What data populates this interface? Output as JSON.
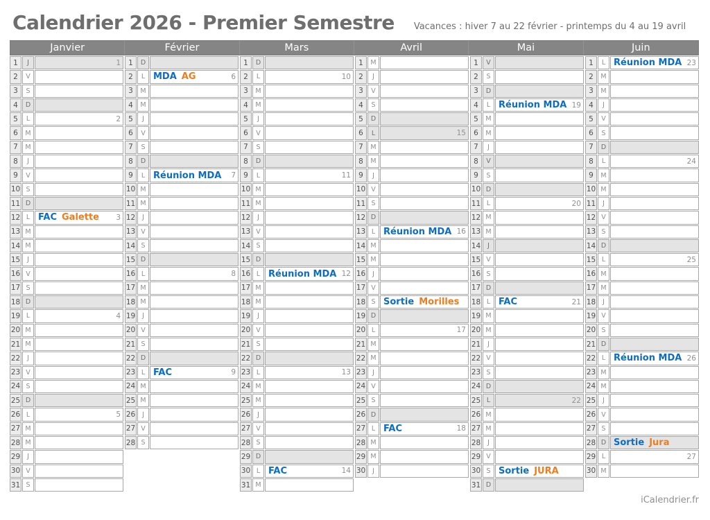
{
  "page": {
    "title": "Calendrier 2026 - Premier Semestre",
    "subtitle": "Vacances : hiver 7 au 22 février - printemps  du 4 au 19 avril",
    "footer": "iCalendrier.fr"
  },
  "colors": {
    "accent_blue": "#0e6dc2",
    "accent_orange": "#ee7d1e",
    "header_gray": "#858585",
    "shaded_row": "#e4e4e4"
  },
  "months": [
    {
      "name": "Janvier",
      "days": [
        {
          "n": 1,
          "l": "J",
          "w": "1",
          "s": 1
        },
        {
          "n": 2,
          "l": "V"
        },
        {
          "n": 3,
          "l": "S"
        },
        {
          "n": 4,
          "l": "D",
          "s": 1
        },
        {
          "n": 5,
          "l": "L",
          "w": "2"
        },
        {
          "n": 6,
          "l": "M"
        },
        {
          "n": 7,
          "l": "M"
        },
        {
          "n": 8,
          "l": "J"
        },
        {
          "n": 9,
          "l": "V"
        },
        {
          "n": 10,
          "l": "S"
        },
        {
          "n": 11,
          "l": "D",
          "s": 1
        },
        {
          "n": 12,
          "l": "L",
          "w": "3",
          "e": [
            [
              "FAC",
              "blue"
            ],
            [
              "Galette",
              "orange"
            ]
          ]
        },
        {
          "n": 13,
          "l": "M"
        },
        {
          "n": 14,
          "l": "M"
        },
        {
          "n": 15,
          "l": "J"
        },
        {
          "n": 16,
          "l": "V"
        },
        {
          "n": 17,
          "l": "S"
        },
        {
          "n": 18,
          "l": "D",
          "s": 1
        },
        {
          "n": 19,
          "l": "L",
          "w": "4"
        },
        {
          "n": 20,
          "l": "M"
        },
        {
          "n": 21,
          "l": "M"
        },
        {
          "n": 22,
          "l": "J"
        },
        {
          "n": 23,
          "l": "V"
        },
        {
          "n": 24,
          "l": "S"
        },
        {
          "n": 25,
          "l": "D",
          "s": 1
        },
        {
          "n": 26,
          "l": "L",
          "w": "5"
        },
        {
          "n": 27,
          "l": "M"
        },
        {
          "n": 28,
          "l": "M"
        },
        {
          "n": 29,
          "l": "J"
        },
        {
          "n": 30,
          "l": "V"
        },
        {
          "n": 31,
          "l": "S"
        }
      ]
    },
    {
      "name": "Février",
      "days": [
        {
          "n": 1,
          "l": "D",
          "s": 1
        },
        {
          "n": 2,
          "l": "L",
          "w": "6",
          "e": [
            [
              "MDA",
              "blue"
            ],
            [
              "AG",
              "orange"
            ]
          ]
        },
        {
          "n": 3,
          "l": "M"
        },
        {
          "n": 4,
          "l": "M"
        },
        {
          "n": 5,
          "l": "J"
        },
        {
          "n": 6,
          "l": "V"
        },
        {
          "n": 7,
          "l": "S"
        },
        {
          "n": 8,
          "l": "D",
          "s": 1
        },
        {
          "n": 9,
          "l": "L",
          "w": "7",
          "e": [
            [
              "Réunion MDA",
              "blue"
            ]
          ]
        },
        {
          "n": 10,
          "l": "M"
        },
        {
          "n": 11,
          "l": "M"
        },
        {
          "n": 12,
          "l": "J"
        },
        {
          "n": 13,
          "l": "V"
        },
        {
          "n": 14,
          "l": "S"
        },
        {
          "n": 15,
          "l": "D",
          "s": 1
        },
        {
          "n": 16,
          "l": "L",
          "w": "8"
        },
        {
          "n": 17,
          "l": "M"
        },
        {
          "n": 18,
          "l": "M"
        },
        {
          "n": 19,
          "l": "J"
        },
        {
          "n": 20,
          "l": "V"
        },
        {
          "n": 21,
          "l": "S"
        },
        {
          "n": 22,
          "l": "D",
          "s": 1
        },
        {
          "n": 23,
          "l": "L",
          "w": "9",
          "e": [
            [
              "FAC",
              "blue"
            ]
          ]
        },
        {
          "n": 24,
          "l": "M"
        },
        {
          "n": 25,
          "l": "M"
        },
        {
          "n": 26,
          "l": "J"
        },
        {
          "n": 27,
          "l": "V"
        },
        {
          "n": 28,
          "l": "S"
        }
      ]
    },
    {
      "name": "Mars",
      "days": [
        {
          "n": 1,
          "l": "D",
          "s": 1
        },
        {
          "n": 2,
          "l": "L",
          "w": "10"
        },
        {
          "n": 3,
          "l": "M"
        },
        {
          "n": 4,
          "l": "M"
        },
        {
          "n": 5,
          "l": "J"
        },
        {
          "n": 6,
          "l": "V"
        },
        {
          "n": 7,
          "l": "S"
        },
        {
          "n": 8,
          "l": "D",
          "s": 1
        },
        {
          "n": 9,
          "l": "L",
          "w": "11"
        },
        {
          "n": 10,
          "l": "M"
        },
        {
          "n": 11,
          "l": "M"
        },
        {
          "n": 12,
          "l": "J"
        },
        {
          "n": 13,
          "l": "V"
        },
        {
          "n": 14,
          "l": "S"
        },
        {
          "n": 15,
          "l": "D",
          "s": 1
        },
        {
          "n": 16,
          "l": "L",
          "w": "12",
          "e": [
            [
              "Réunion MDA",
              "blue"
            ]
          ]
        },
        {
          "n": 17,
          "l": "M"
        },
        {
          "n": 18,
          "l": "M"
        },
        {
          "n": 19,
          "l": "J"
        },
        {
          "n": 20,
          "l": "V"
        },
        {
          "n": 21,
          "l": "S"
        },
        {
          "n": 22,
          "l": "D",
          "s": 1
        },
        {
          "n": 23,
          "l": "L",
          "w": "13"
        },
        {
          "n": 24,
          "l": "M"
        },
        {
          "n": 25,
          "l": "M"
        },
        {
          "n": 26,
          "l": "J"
        },
        {
          "n": 27,
          "l": "V"
        },
        {
          "n": 28,
          "l": "S"
        },
        {
          "n": 29,
          "l": "D",
          "s": 1
        },
        {
          "n": 30,
          "l": "L",
          "w": "14",
          "e": [
            [
              "FAC",
              "blue"
            ]
          ]
        },
        {
          "n": 31,
          "l": "M"
        }
      ]
    },
    {
      "name": "Avril",
      "days": [
        {
          "n": 1,
          "l": "M"
        },
        {
          "n": 2,
          "l": "J"
        },
        {
          "n": 3,
          "l": "V"
        },
        {
          "n": 4,
          "l": "S"
        },
        {
          "n": 5,
          "l": "D",
          "s": 1
        },
        {
          "n": 6,
          "l": "L",
          "w": "15",
          "s": 1
        },
        {
          "n": 7,
          "l": "M"
        },
        {
          "n": 8,
          "l": "M"
        },
        {
          "n": 9,
          "l": "J"
        },
        {
          "n": 10,
          "l": "V"
        },
        {
          "n": 11,
          "l": "S"
        },
        {
          "n": 12,
          "l": "D",
          "s": 1
        },
        {
          "n": 13,
          "l": "L",
          "w": "16",
          "e": [
            [
              "Réunion MDA",
              "blue"
            ]
          ]
        },
        {
          "n": 14,
          "l": "M"
        },
        {
          "n": 15,
          "l": "M"
        },
        {
          "n": 16,
          "l": "J"
        },
        {
          "n": 17,
          "l": "V"
        },
        {
          "n": 18,
          "l": "S",
          "e": [
            [
              "Sortie",
              "blue"
            ],
            [
              "Morilles",
              "orange"
            ]
          ]
        },
        {
          "n": 19,
          "l": "D",
          "s": 1
        },
        {
          "n": 20,
          "l": "L",
          "w": "17"
        },
        {
          "n": 21,
          "l": "M"
        },
        {
          "n": 22,
          "l": "M"
        },
        {
          "n": 23,
          "l": "J"
        },
        {
          "n": 24,
          "l": "V"
        },
        {
          "n": 25,
          "l": "S"
        },
        {
          "n": 26,
          "l": "D",
          "s": 1
        },
        {
          "n": 27,
          "l": "L",
          "w": "18",
          "e": [
            [
              "FAC",
              "blue"
            ]
          ]
        },
        {
          "n": 28,
          "l": "M"
        },
        {
          "n": 29,
          "l": "M"
        },
        {
          "n": 30,
          "l": "J"
        }
      ]
    },
    {
      "name": "Mai",
      "days": [
        {
          "n": 1,
          "l": "V",
          "s": 1
        },
        {
          "n": 2,
          "l": "S"
        },
        {
          "n": 3,
          "l": "D",
          "s": 1
        },
        {
          "n": 4,
          "l": "L",
          "w": "19",
          "e": [
            [
              "Réunion MDA",
              "blue"
            ]
          ]
        },
        {
          "n": 5,
          "l": "M"
        },
        {
          "n": 6,
          "l": "M"
        },
        {
          "n": 7,
          "l": "J"
        },
        {
          "n": 8,
          "l": "V",
          "s": 1
        },
        {
          "n": 9,
          "l": "S"
        },
        {
          "n": 10,
          "l": "D",
          "s": 1
        },
        {
          "n": 11,
          "l": "L",
          "w": "20"
        },
        {
          "n": 12,
          "l": "M"
        },
        {
          "n": 13,
          "l": "M"
        },
        {
          "n": 14,
          "l": "J",
          "s": 1
        },
        {
          "n": 15,
          "l": "V"
        },
        {
          "n": 16,
          "l": "S"
        },
        {
          "n": 17,
          "l": "D",
          "s": 1
        },
        {
          "n": 18,
          "l": "L",
          "w": "21",
          "e": [
            [
              "FAC",
              "blue"
            ]
          ]
        },
        {
          "n": 19,
          "l": "M"
        },
        {
          "n": 20,
          "l": "M"
        },
        {
          "n": 21,
          "l": "J"
        },
        {
          "n": 22,
          "l": "V"
        },
        {
          "n": 23,
          "l": "S"
        },
        {
          "n": 24,
          "l": "D",
          "s": 1
        },
        {
          "n": 25,
          "l": "L",
          "w": "22",
          "s": 1
        },
        {
          "n": 26,
          "l": "M"
        },
        {
          "n": 27,
          "l": "M"
        },
        {
          "n": 28,
          "l": "J"
        },
        {
          "n": 29,
          "l": "V"
        },
        {
          "n": 30,
          "l": "S",
          "e": [
            [
              "Sortie",
              "blue"
            ],
            [
              "JURA",
              "orange"
            ]
          ]
        },
        {
          "n": 31,
          "l": "D",
          "s": 1
        }
      ]
    },
    {
      "name": "Juin",
      "days": [
        {
          "n": 1,
          "l": "L",
          "w": "23",
          "e": [
            [
              "Réunion MDA",
              "blue"
            ]
          ]
        },
        {
          "n": 2,
          "l": "M"
        },
        {
          "n": 3,
          "l": "M"
        },
        {
          "n": 4,
          "l": "J"
        },
        {
          "n": 5,
          "l": "V"
        },
        {
          "n": 6,
          "l": "S"
        },
        {
          "n": 7,
          "l": "D",
          "s": 1
        },
        {
          "n": 8,
          "l": "L",
          "w": "24"
        },
        {
          "n": 9,
          "l": "M"
        },
        {
          "n": 10,
          "l": "M"
        },
        {
          "n": 11,
          "l": "J"
        },
        {
          "n": 12,
          "l": "V"
        },
        {
          "n": 13,
          "l": "S"
        },
        {
          "n": 14,
          "l": "D",
          "s": 1
        },
        {
          "n": 15,
          "l": "L",
          "w": "25"
        },
        {
          "n": 16,
          "l": "M"
        },
        {
          "n": 17,
          "l": "M"
        },
        {
          "n": 18,
          "l": "J"
        },
        {
          "n": 19,
          "l": "V"
        },
        {
          "n": 20,
          "l": "S"
        },
        {
          "n": 21,
          "l": "D",
          "s": 1
        },
        {
          "n": 22,
          "l": "L",
          "w": "26",
          "e": [
            [
              "Réunion MDA",
              "blue"
            ]
          ]
        },
        {
          "n": 23,
          "l": "M"
        },
        {
          "n": 24,
          "l": "M"
        },
        {
          "n": 25,
          "l": "J"
        },
        {
          "n": 26,
          "l": "V"
        },
        {
          "n": 27,
          "l": "S"
        },
        {
          "n": 28,
          "l": "D",
          "s": 1,
          "e": [
            [
              "Sortie",
              "blue"
            ],
            [
              "Jura",
              "orange"
            ]
          ]
        },
        {
          "n": 29,
          "l": "L",
          "w": "27"
        },
        {
          "n": 30,
          "l": "M"
        }
      ]
    }
  ]
}
